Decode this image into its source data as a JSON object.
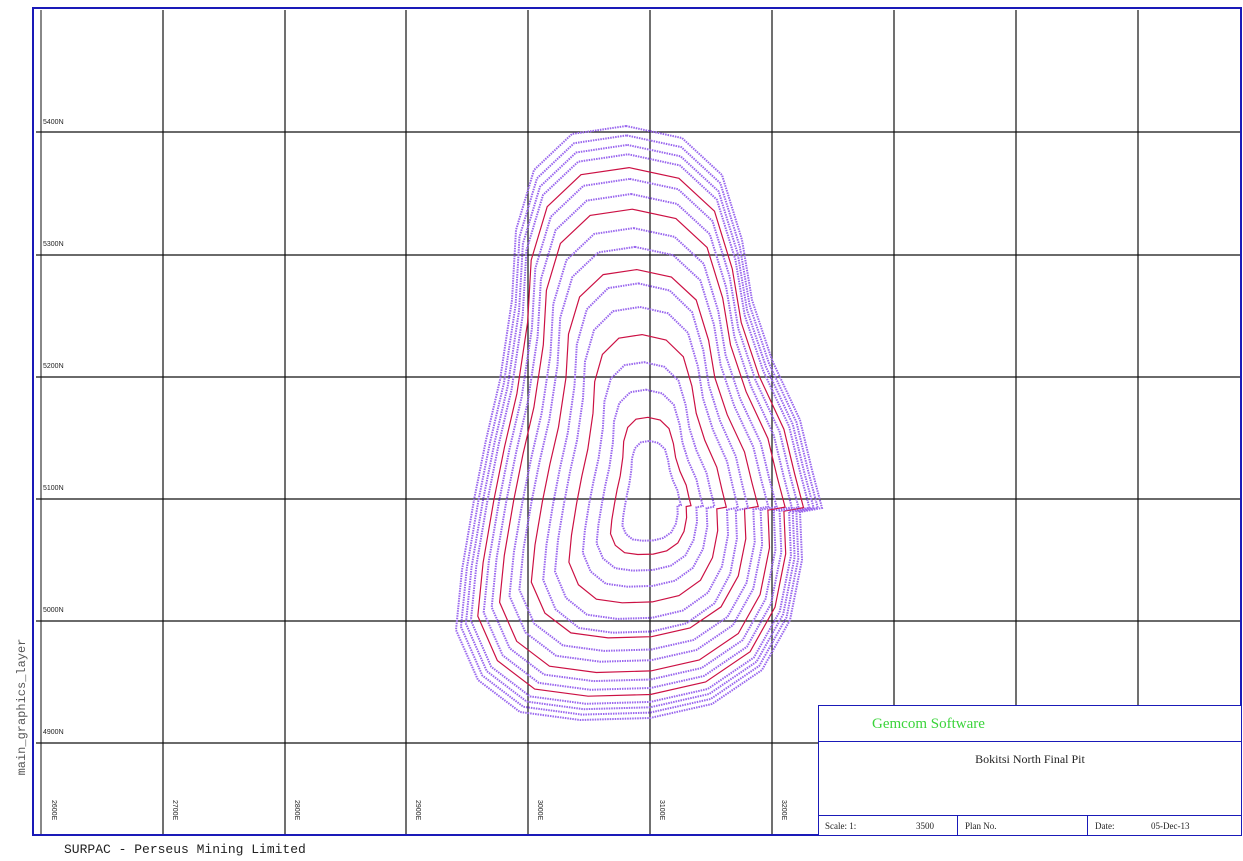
{
  "side_label": "main_graphics_layer",
  "footer_text": "SURPAC - Perseus Mining Limited",
  "northings": [
    "5400N",
    "5300N",
    "5200N",
    "5100N",
    "5000N",
    "4900N"
  ],
  "eastings": [
    "2600E",
    "2700E",
    "2800E",
    "2900E",
    "3000E",
    "3100E",
    "3200E"
  ],
  "title_block": {
    "company": "Gemcom Software",
    "title": "Bokitsi North Final Pit",
    "scale_label": "Scale: 1:",
    "scale_value": "3500",
    "plan_label": "Plan No.",
    "plan_value": "",
    "date_label": "Date:",
    "date_value": "05-Dec-13"
  },
  "colors": {
    "grid": "#111111",
    "frame": "#1a1ab8",
    "pit_outer": "#9966ee",
    "pit_inner": "#cc1144",
    "company_text": "#3bd43b"
  }
}
